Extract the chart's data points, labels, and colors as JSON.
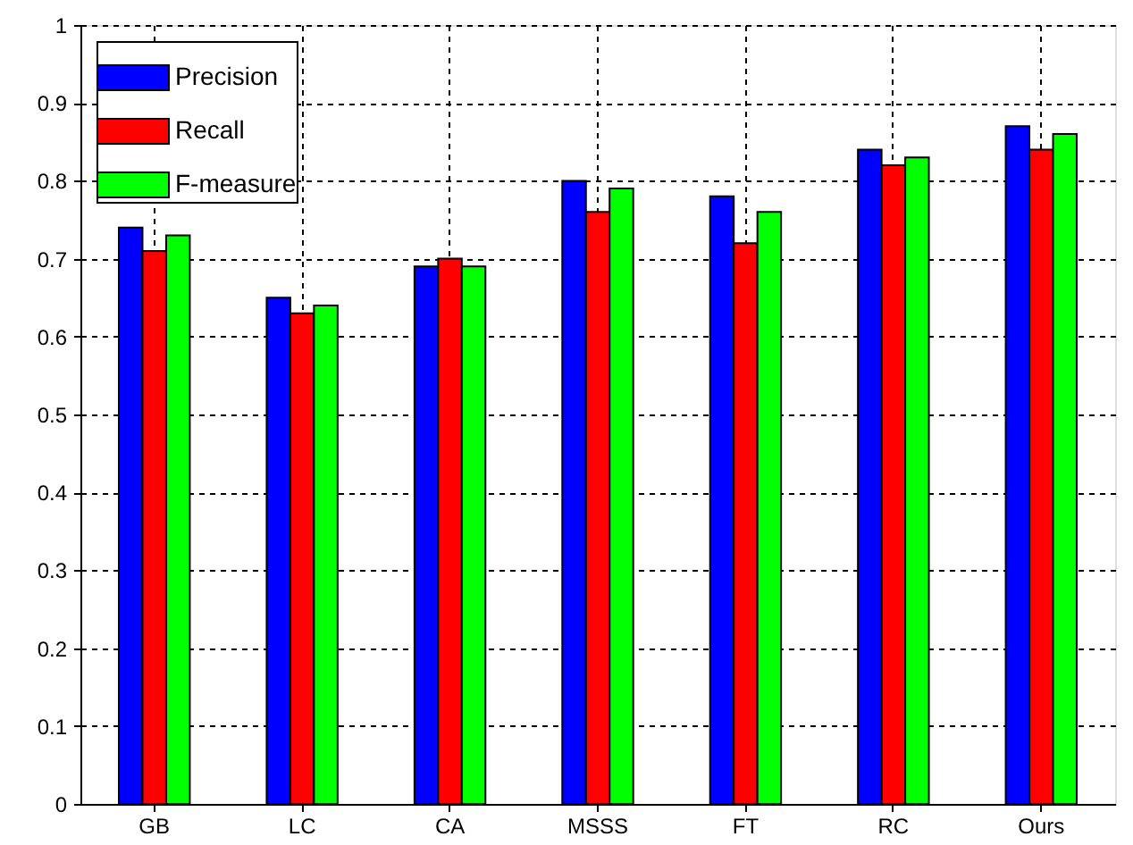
{
  "chart_data": {
    "type": "bar",
    "categories": [
      "GB",
      "LC",
      "CA",
      "MSSS",
      "FT",
      "RC",
      "Ours"
    ],
    "series": [
      {
        "name": "Precision",
        "color": "#0000ff",
        "values": [
          0.74,
          0.65,
          0.69,
          0.8,
          0.78,
          0.84,
          0.87
        ]
      },
      {
        "name": "Recall",
        "color": "#ff0000",
        "values": [
          0.71,
          0.63,
          0.7,
          0.76,
          0.72,
          0.82,
          0.84
        ]
      },
      {
        "name": "F-measure",
        "color": "#00ff00",
        "values": [
          0.73,
          0.64,
          0.69,
          0.79,
          0.76,
          0.83,
          0.86
        ]
      }
    ],
    "ylim": [
      0,
      1
    ],
    "yticks": [
      0,
      0.1,
      0.2,
      0.3,
      0.4,
      0.5,
      0.6,
      0.7,
      0.8,
      0.9,
      1
    ],
    "grid": true,
    "legend": "top left"
  }
}
